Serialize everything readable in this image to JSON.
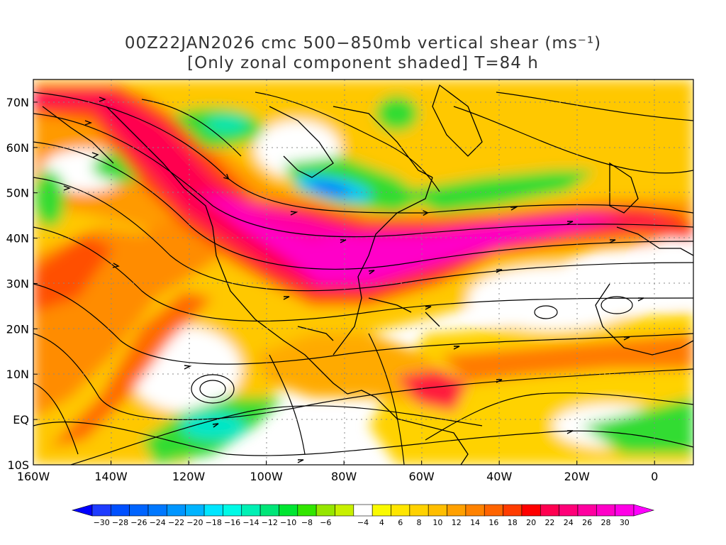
{
  "title_line1": "00Z22JAN2026 cmc 500−850mb vertical shear (ms⁻¹)",
  "title_line2": "[Only zonal component shaded] T=84 h",
  "axes": {
    "lat_labels": [
      "70N",
      "60N",
      "50N",
      "40N",
      "30N",
      "20N",
      "10N",
      "EQ",
      "10S"
    ],
    "lat_values": [
      70,
      60,
      50,
      40,
      30,
      20,
      10,
      0,
      -10
    ],
    "lon_labels": [
      "160W",
      "140W",
      "120W",
      "100W",
      "80W",
      "60W",
      "40W",
      "20W",
      "0"
    ],
    "lon_values": [
      -160,
      -140,
      -120,
      -100,
      -80,
      -60,
      -40,
      -20,
      0
    ],
    "lon_range": [
      -160,
      10
    ],
    "lat_range": [
      -10,
      75
    ],
    "grid": "dotted"
  },
  "colorbar": {
    "labels": [
      "−30",
      "−28",
      "−26",
      "−24",
      "−22",
      "−20",
      "−18",
      "−16",
      "−14",
      "−12",
      "−10",
      "−8",
      "−6",
      "−4",
      "4",
      "6",
      "8",
      "10",
      "12",
      "14",
      "16",
      "18",
      "20",
      "22",
      "24",
      "26",
      "28",
      "30"
    ],
    "colors": [
      "#1e3cff",
      "#0050ff",
      "#0064ff",
      "#0078ff",
      "#0096ff",
      "#00b4ff",
      "#00e6ff",
      "#00fae6",
      "#00f0b4",
      "#00e678",
      "#00e632",
      "#32e600",
      "#96e600",
      "#c8f000",
      "#ffffff",
      "#fafa00",
      "#ffe600",
      "#ffd200",
      "#ffbe00",
      "#ffa000",
      "#ff8200",
      "#ff6400",
      "#ff3c00",
      "#ff0000",
      "#ff0050",
      "#ff0078",
      "#ff00a0",
      "#ff00c8",
      "#ff00e6"
    ],
    "low_arrow_color": "#0000ff",
    "high_arrow_color": "#ff00ff"
  }
}
